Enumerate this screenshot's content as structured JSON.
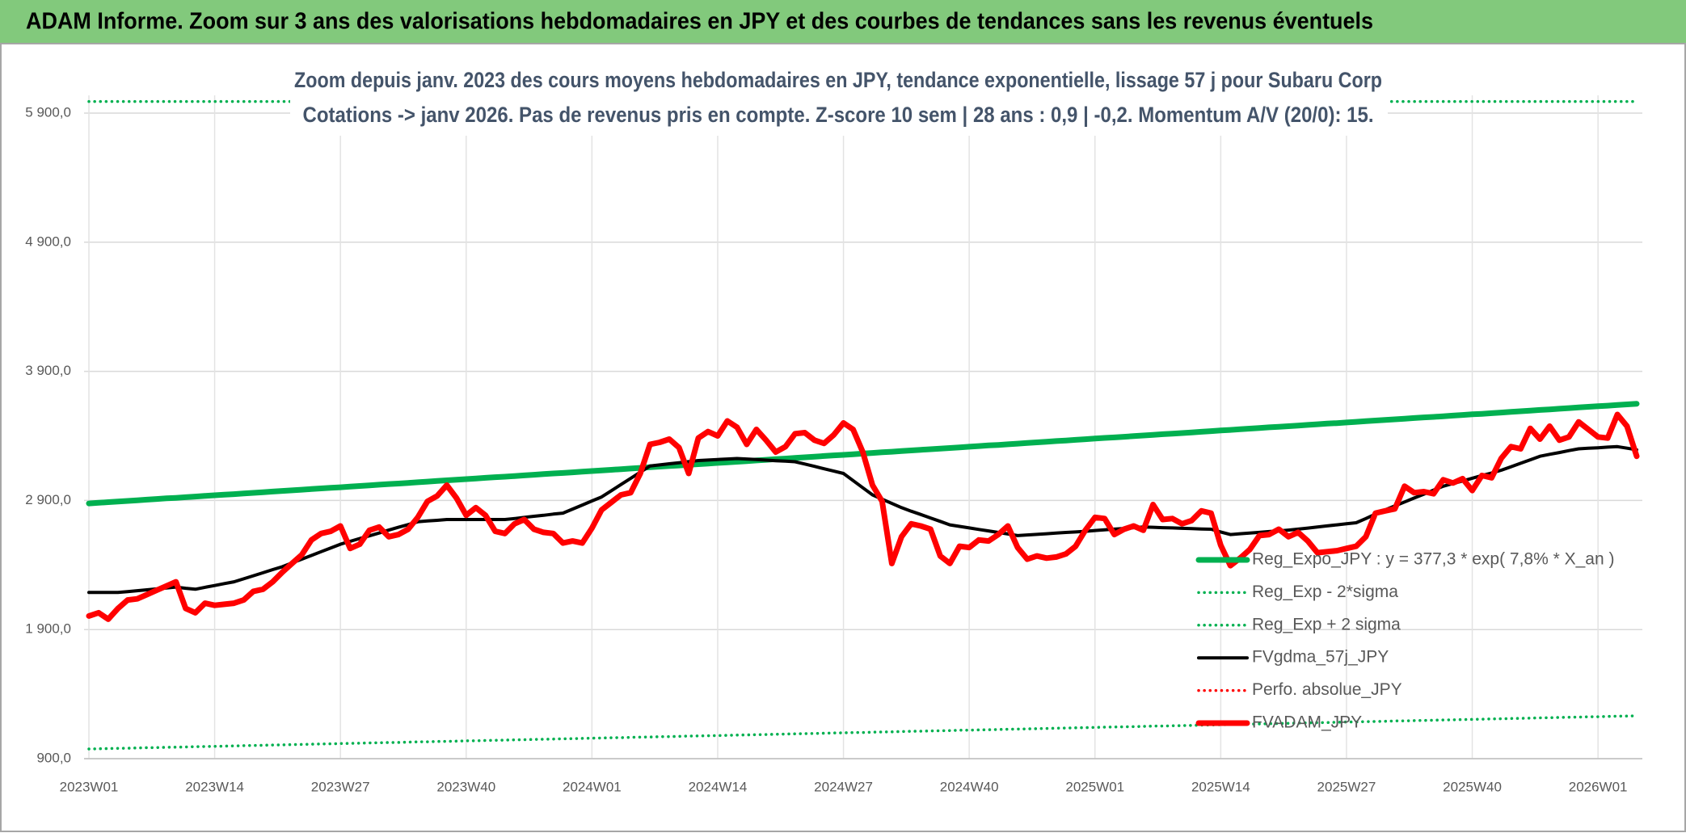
{
  "chart_data": {
    "type": "line",
    "title": "ADAM Informe. Zoom sur 3 ans des valorisations hebdomadaires en JPY et des courbes de tendances sans les revenus éventuels",
    "subtitle": [
      "Zoom depuis janv. 2023 des cours moyens hebdomadaires en JPY, tendance exponentielle, lissage 57 j pour Subaru Corp",
      "Cotations -> janv 2026. Pas de revenus pris en compte. Z-score 10 sem | 28 ans : 0,9 | -0,2. Momentum A/V (20/0): 15."
    ],
    "ylim": [
      900,
      6000
    ],
    "yticks": [
      {
        "value": 900,
        "label": "900,0"
      },
      {
        "value": 1900,
        "label": "1 900,0"
      },
      {
        "value": 2900,
        "label": "2 900,0"
      },
      {
        "value": 3900,
        "label": "3 900,0"
      },
      {
        "value": 4900,
        "label": "4 900,0"
      },
      {
        "value": 5900,
        "label": "5 900,0"
      }
    ],
    "grid": true,
    "legend": "lower right",
    "categories": [
      "2023W01",
      null,
      null,
      null,
      null,
      null,
      null,
      null,
      null,
      null,
      null,
      null,
      null,
      "2023W14",
      null,
      null,
      null,
      null,
      null,
      null,
      null,
      null,
      null,
      null,
      null,
      null,
      "2023W27",
      null,
      null,
      null,
      null,
      null,
      null,
      null,
      null,
      null,
      null,
      null,
      null,
      "2023W40",
      null,
      null,
      null,
      null,
      null,
      null,
      null,
      null,
      null,
      null,
      null,
      null,
      "2024W01",
      null,
      null,
      null,
      null,
      null,
      null,
      null,
      null,
      null,
      null,
      null,
      null,
      "2024W14",
      null,
      null,
      null,
      null,
      null,
      null,
      null,
      null,
      null,
      null,
      null,
      null,
      "2024W27",
      null,
      null,
      null,
      null,
      null,
      null,
      null,
      null,
      null,
      null,
      null,
      null,
      "2024W40",
      null,
      null,
      null,
      null,
      null,
      null,
      null,
      null,
      null,
      null,
      null,
      null,
      "2025W01",
      null,
      null,
      null,
      null,
      null,
      null,
      null,
      null,
      null,
      null,
      null,
      null,
      "2025W14",
      null,
      null,
      null,
      null,
      null,
      null,
      null,
      null,
      null,
      null,
      null,
      null,
      "2025W27",
      null,
      null,
      null,
      null,
      null,
      null,
      null,
      null,
      null,
      null,
      null,
      null,
      "2025W40",
      null,
      null,
      null,
      null,
      null,
      null,
      null,
      null,
      null,
      null,
      null,
      null,
      "2026W01",
      null,
      null,
      null,
      null
    ],
    "series": [
      {
        "name": "Reg_Expo_JPY : y = 377,3 * exp( 7,8% *  X_an )",
        "color": "#00b050",
        "style": "thick",
        "values": [
          2877,
          2882,
          2887,
          2891,
          2896,
          2901,
          2906,
          2911,
          2916,
          2920,
          2925,
          2930,
          2935,
          2940,
          2945,
          2949,
          2954,
          2959,
          2964,
          2969,
          2974,
          2978,
          2983,
          2988,
          2993,
          2998,
          3002,
          3007,
          3012,
          3017,
          3022,
          3027,
          3031,
          3036,
          3041,
          3046,
          3051,
          3056,
          3060,
          3065,
          3070,
          3075,
          3080,
          3084,
          3089,
          3094,
          3099,
          3104,
          3109,
          3113,
          3118,
          3123,
          3128,
          3133,
          3137,
          3142,
          3147,
          3152,
          3157,
          3162,
          3167,
          3171,
          3176,
          3181,
          3186,
          3191,
          3195,
          3200,
          3205,
          3210,
          3215,
          3220,
          3224,
          3229,
          3234,
          3239,
          3244,
          3249,
          3253,
          3258,
          3263,
          3268,
          3273,
          3277,
          3282,
          3287,
          3292,
          3297,
          3302,
          3306,
          3311,
          3316,
          3321,
          3326,
          3330,
          3335,
          3340,
          3345,
          3350,
          3355,
          3360,
          3364,
          3369,
          3374,
          3379,
          3384,
          3388,
          3393,
          3398,
          3403,
          3408,
          3413,
          3417,
          3422,
          3427,
          3432,
          3437,
          3442,
          3446,
          3451,
          3456,
          3461,
          3466,
          3470,
          3475,
          3480,
          3485,
          3490,
          3495,
          3499,
          3504,
          3509,
          3514,
          3519,
          3523,
          3528,
          3533,
          3538,
          3543,
          3547,
          3552,
          3557,
          3562,
          3567,
          3571,
          3576,
          3581,
          3586,
          3591,
          3596,
          3601,
          3605,
          3610,
          3615,
          3620,
          3625,
          3630,
          3634,
          3639,
          3644,
          3649
        ]
      },
      {
        "name": "Reg_Exp - 2*sigma",
        "color": "#00b050",
        "style": "dotted",
        "values": [
          975,
          977,
          978,
          980,
          981,
          983,
          985,
          986,
          988,
          989,
          991,
          993,
          994,
          996,
          997,
          999,
          1001,
          1002,
          1004,
          1006,
          1007,
          1009,
          1010,
          1012,
          1014,
          1015,
          1017,
          1018,
          1020,
          1022,
          1023,
          1025,
          1026,
          1028,
          1030,
          1031,
          1033,
          1034,
          1036,
          1038,
          1039,
          1041,
          1042,
          1044,
          1046,
          1047,
          1049,
          1050,
          1052,
          1054,
          1055,
          1057,
          1059,
          1060,
          1062,
          1063,
          1065,
          1067,
          1068,
          1070,
          1071,
          1073,
          1075,
          1076,
          1078,
          1079,
          1081,
          1083,
          1084,
          1086,
          1087,
          1089,
          1091,
          1092,
          1094,
          1095,
          1097,
          1099,
          1100,
          1102,
          1103,
          1105,
          1107,
          1108,
          1110,
          1112,
          1113,
          1115,
          1116,
          1118,
          1120,
          1121,
          1123,
          1124,
          1126,
          1128,
          1129,
          1131,
          1132,
          1134,
          1136,
          1137,
          1139,
          1140,
          1142,
          1144,
          1145,
          1147,
          1148,
          1150,
          1152,
          1153,
          1155,
          1156,
          1158,
          1160,
          1161,
          1163,
          1164,
          1166,
          1168,
          1169,
          1171,
          1172,
          1174,
          1176,
          1177,
          1179,
          1180,
          1182,
          1184,
          1185,
          1187,
          1188,
          1190,
          1192,
          1193,
          1195,
          1196,
          1198,
          1200,
          1201,
          1203,
          1204,
          1206,
          1208,
          1209,
          1211,
          1212,
          1214,
          1216,
          1217,
          1219,
          1221,
          1222,
          1224,
          1225,
          1227,
          1229,
          1230,
          1232
        ]
      },
      {
        "name": "Reg_Exp + 2 sigma",
        "color": "#00b050",
        "style": "dotted",
        "values": [
          5990,
          5990,
          5990,
          5990,
          5990,
          5990,
          5990,
          5990,
          5990,
          5990,
          5990,
          5990,
          5990,
          5990,
          5990,
          5990,
          5990,
          5990,
          5990,
          5990,
          5990,
          5990,
          5990,
          5990,
          5990,
          5990,
          5990,
          5990,
          5990,
          5990,
          5990,
          5990,
          5990,
          5990,
          5990,
          5990,
          5990,
          5990,
          5990,
          5990,
          5990,
          5990,
          5990,
          5990,
          5990,
          5990,
          5990,
          5990,
          5990,
          5990,
          5990,
          5990,
          5990,
          5990,
          5990,
          5990,
          5990,
          5990,
          5990,
          5990,
          5990,
          5990,
          5990,
          5990,
          5990,
          5990,
          5990,
          5990,
          5990,
          5990,
          5990,
          5990,
          5990,
          5990,
          5990,
          5990,
          5990,
          5990,
          5990,
          5990,
          5990,
          5990,
          5990,
          5990,
          5990,
          5990,
          5990,
          5990,
          5990,
          5990,
          5990,
          5990,
          5990,
          5990,
          5990,
          5990,
          5990,
          5990,
          5990,
          5990,
          5990,
          5990,
          5990,
          5990,
          5990,
          5990,
          5990,
          5990,
          5990,
          5990,
          5990,
          5990,
          5990,
          5990,
          5990,
          5990,
          5990,
          5990,
          5990,
          5990,
          5990,
          5990,
          5990,
          5990,
          5990,
          5990,
          5990,
          5990,
          5990,
          5990,
          5990,
          5990,
          5990,
          5990,
          5990,
          5990,
          5990,
          5990,
          5990,
          5990,
          5990,
          5990,
          5990,
          5990,
          5990,
          5990,
          5990,
          5990,
          5990,
          5990,
          5990,
          5990,
          5990,
          5990,
          5990,
          5990,
          5990,
          5990,
          5990,
          5990,
          5990
        ]
      },
      {
        "name": "FVgdma_57j_JPY",
        "color": "#000000",
        "style": "solid",
        "values": [
          2187,
          2187,
          2187,
          2187,
          2194,
          2201,
          2208,
          2215,
          2222,
          2229,
          2220,
          2212,
          2227,
          2241,
          2256,
          2270,
          2293,
          2317,
          2340,
          2364,
          2387,
          2416,
          2445,
          2474,
          2503,
          2532,
          2561,
          2583,
          2605,
          2626,
          2648,
          2670,
          2692,
          2713,
          2735,
          2741,
          2746,
          2752,
          2752,
          2752,
          2752,
          2752,
          2752,
          2752,
          2760,
          2769,
          2777,
          2785,
          2794,
          2802,
          2833,
          2864,
          2896,
          2927,
          2975,
          3023,
          3071,
          3119,
          3167,
          3175,
          3184,
          3192,
          3201,
          3209,
          3213,
          3217,
          3221,
          3225,
          3221,
          3217,
          3212,
          3208,
          3204,
          3200,
          3182,
          3164,
          3145,
          3127,
          3109,
          3054,
          2998,
          2943,
          2910,
          2877,
          2844,
          2817,
          2791,
          2764,
          2738,
          2711,
          2699,
          2687,
          2675,
          2664,
          2652,
          2640,
          2628,
          2633,
          2637,
          2642,
          2647,
          2652,
          2656,
          2661,
          2667,
          2672,
          2678,
          2683,
          2689,
          2694,
          2692,
          2689,
          2687,
          2684,
          2682,
          2679,
          2677,
          2656,
          2636,
          2642,
          2647,
          2653,
          2659,
          2664,
          2670,
          2678,
          2686,
          2694,
          2703,
          2711,
          2719,
          2727,
          2760,
          2794,
          2827,
          2858,
          2888,
          2919,
          2949,
          2980,
          3010,
          3031,
          3051,
          3072,
          3093,
          3113,
          3134,
          3161,
          3188,
          3215,
          3242,
          3257,
          3271,
          3286,
          3300,
          3304,
          3308,
          3313,
          3317,
          3305,
          3292
        ]
      },
      {
        "name": "Perfo. absolue_JPY",
        "color": "#ff0000",
        "style": "dotted",
        "values": [
          null,
          null,
          null,
          null,
          null,
          null,
          null,
          null,
          null,
          null,
          null,
          null,
          null,
          null,
          null,
          null,
          null,
          null,
          null,
          null,
          null,
          null,
          null,
          null,
          null,
          null,
          null,
          null,
          null,
          null,
          null,
          null,
          null,
          null,
          null,
          null,
          null,
          null,
          null,
          null,
          null,
          null,
          null,
          null,
          null,
          null,
          null,
          null,
          null,
          null,
          null,
          null,
          null,
          null,
          null,
          null,
          null,
          null,
          null,
          null,
          null,
          null,
          null,
          null,
          null,
          null,
          null,
          null,
          null,
          null,
          null,
          null,
          null,
          null,
          null,
          null,
          null,
          null,
          null,
          null,
          null,
          null,
          null,
          null,
          null,
          null,
          null,
          null,
          null,
          null,
          null,
          null,
          null,
          null,
          null,
          null,
          null,
          null,
          null,
          null,
          null,
          null,
          null,
          null,
          null,
          null,
          null,
          null,
          null,
          null,
          null,
          null,
          null,
          null,
          null,
          null,
          null,
          null,
          null,
          null,
          null,
          null,
          null,
          null,
          null,
          null,
          null,
          null,
          null,
          null,
          null,
          null,
          null,
          null,
          null,
          null,
          null,
          null,
          null,
          null,
          null,
          null,
          null,
          null,
          null,
          null,
          null,
          null,
          null,
          null,
          null,
          null,
          null,
          null,
          null,
          null,
          null,
          null,
          null,
          null,
          null
        ]
      },
      {
        "name": "FVADAM_JPY",
        "color": "#ff0000",
        "style": "thick",
        "values": [
          2005,
          2030,
          1980,
          2063,
          2129,
          2138,
          2171,
          2204,
          2237,
          2270,
          2063,
          2030,
          2104,
          2088,
          2096,
          2104,
          2129,
          2196,
          2212,
          2270,
          2345,
          2412,
          2478,
          2594,
          2644,
          2661,
          2702,
          2528,
          2561,
          2669,
          2694,
          2619,
          2636,
          2677,
          2769,
          2893,
          2935,
          3018,
          2918,
          2785,
          2844,
          2785,
          2661,
          2644,
          2719,
          2752,
          2677,
          2653,
          2644,
          2570,
          2586,
          2570,
          2686,
          2827,
          2885,
          2943,
          2960,
          3109,
          3334,
          3350,
          3375,
          3309,
          3109,
          3383,
          3433,
          3400,
          3516,
          3467,
          3334,
          3450,
          3367,
          3275,
          3317,
          3417,
          3425,
          3367,
          3342,
          3408,
          3500,
          3450,
          3275,
          3018,
          2893,
          2412,
          2619,
          2719,
          2702,
          2677,
          2470,
          2412,
          2545,
          2536,
          2594,
          2586,
          2636,
          2702,
          2536,
          2445,
          2470,
          2453,
          2462,
          2486,
          2545,
          2669,
          2769,
          2760,
          2636,
          2677,
          2702,
          2669,
          2868,
          2752,
          2760,
          2719,
          2744,
          2819,
          2802,
          2553,
          2395,
          2453,
          2520,
          2628,
          2636,
          2677,
          2619,
          2653,
          2586,
          2495,
          2503,
          2511,
          2528,
          2545,
          2619,
          2802,
          2819,
          2835,
          3010,
          2960,
          2968,
          2952,
          3060,
          3035,
          3068,
          2977,
          3093,
          3076,
          3226,
          3317,
          3300,
          3458,
          3375,
          3475,
          3367,
          3392,
          3508,
          3450,
          3392,
          3383,
          3566,
          3475,
          3242
        ]
      }
    ]
  }
}
